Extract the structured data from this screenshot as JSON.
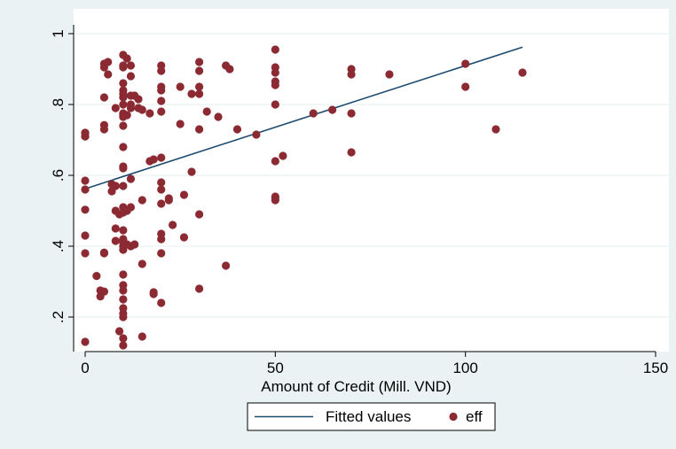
{
  "chart_data": {
    "type": "scatter",
    "title": "",
    "xlabel": "Amount of Credit (Mill. VND)",
    "ylabel": "",
    "xlim": [
      0,
      150
    ],
    "ylim": [
      0.12,
      1.0
    ],
    "xticks": [
      0,
      50,
      100,
      150
    ],
    "yticks": [
      0.2,
      0.4,
      0.6,
      0.8,
      1
    ],
    "xtick_labels": [
      "0",
      "50",
      "100",
      "150"
    ],
    "ytick_labels": [
      ".2",
      ".4",
      ".6",
      ".8",
      "1"
    ],
    "grid": true,
    "legend_position": "bottom",
    "colors": {
      "background": "#eaf2f3",
      "plot_area": "#ffffff",
      "points": "#8b2a32",
      "line": "#1c4a6e"
    },
    "series": [
      {
        "name": "Fitted values",
        "type": "line",
        "x": [
          0,
          115
        ],
        "y": [
          0.562,
          0.962
        ]
      },
      {
        "name": "eff",
        "type": "scatter",
        "x": [
          0,
          0,
          0,
          0,
          0,
          0,
          0,
          0,
          0,
          0,
          3,
          4,
          4,
          5,
          5,
          5,
          5,
          5,
          5,
          5,
          5,
          6,
          6,
          7,
          7,
          8,
          8,
          8,
          8,
          8,
          9,
          9,
          10,
          10,
          10,
          10,
          10,
          10,
          10,
          10,
          10,
          10,
          10,
          10,
          10,
          10,
          10,
          10,
          10,
          10,
          10,
          10,
          10,
          10,
          10,
          10,
          10,
          10,
          10,
          10,
          10,
          10,
          10,
          10,
          11,
          11,
          11,
          11,
          12,
          12,
          12,
          12,
          12,
          12,
          12,
          12,
          13,
          13,
          14,
          14,
          15,
          15,
          15,
          15,
          17,
          17,
          18,
          18,
          18,
          20,
          20,
          20,
          20,
          20,
          20,
          20,
          20,
          20,
          20,
          20,
          20,
          20,
          20,
          22,
          22,
          23,
          25,
          25,
          26,
          26,
          28,
          28,
          30,
          30,
          30,
          30,
          30,
          30,
          30,
          32,
          35,
          37,
          37,
          38,
          40,
          45,
          50,
          50,
          50,
          50,
          50,
          50,
          50,
          50,
          50,
          50,
          52,
          60,
          65,
          70,
          70,
          70,
          70,
          80,
          100,
          100,
          108,
          115
        ],
        "y": [
          0.72,
          0.71,
          0.585,
          0.56,
          0.503,
          0.43,
          0.38,
          0.13,
          0.72,
          0.71,
          0.316,
          0.275,
          0.258,
          0.915,
          0.82,
          0.742,
          0.73,
          0.38,
          0.272,
          0.382,
          0.905,
          0.92,
          0.885,
          0.555,
          0.575,
          0.79,
          0.5,
          0.45,
          0.415,
          0.57,
          0.16,
          0.49,
          0.94,
          0.91,
          0.905,
          0.86,
          0.84,
          0.83,
          0.82,
          0.8,
          0.775,
          0.77,
          0.765,
          0.74,
          0.68,
          0.625,
          0.62,
          0.57,
          0.51,
          0.495,
          0.445,
          0.41,
          0.4,
          0.39,
          0.32,
          0.29,
          0.275,
          0.25,
          0.225,
          0.21,
          0.2,
          0.14,
          0.12,
          0.42,
          0.77,
          0.5,
          0.405,
          0.93,
          0.91,
          0.88,
          0.825,
          0.8,
          0.79,
          0.59,
          0.51,
          0.4,
          0.825,
          0.405,
          0.79,
          0.815,
          0.785,
          0.53,
          0.35,
          0.145,
          0.775,
          0.64,
          0.265,
          0.27,
          0.645,
          0.91,
          0.895,
          0.85,
          0.84,
          0.81,
          0.78,
          0.65,
          0.58,
          0.56,
          0.52,
          0.435,
          0.42,
          0.38,
          0.24,
          0.535,
          0.53,
          0.46,
          0.85,
          0.745,
          0.545,
          0.425,
          0.83,
          0.61,
          0.92,
          0.895,
          0.85,
          0.83,
          0.73,
          0.49,
          0.28,
          0.78,
          0.765,
          0.345,
          0.91,
          0.9,
          0.73,
          0.715,
          0.955,
          0.905,
          0.89,
          0.865,
          0.855,
          0.8,
          0.64,
          0.54,
          0.53,
          0.535,
          0.655,
          0.775,
          0.785,
          0.9,
          0.885,
          0.775,
          0.665,
          0.885,
          0.915,
          0.85,
          0.73,
          0.89
        ]
      }
    ]
  }
}
